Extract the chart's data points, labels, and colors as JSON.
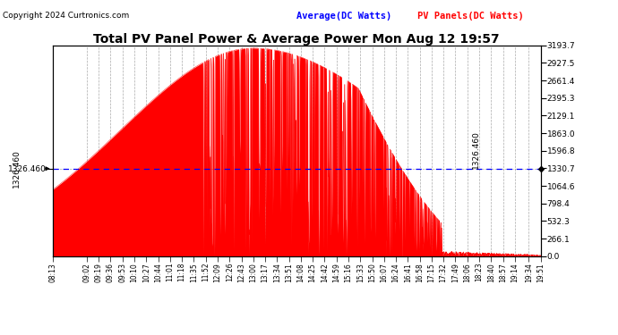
{
  "title": "Total PV Panel Power & Average Power Mon Aug 12 19:57",
  "copyright": "Copyright 2024 Curtronics.com",
  "legend_avg": "Average(DC Watts)",
  "legend_pv": "PV Panels(DC Watts)",
  "avg_value": 1326.46,
  "avg_label": "1326.460",
  "y_max": 3193.7,
  "y_min": 0.0,
  "yticks_right": [
    0.0,
    266.1,
    532.3,
    798.4,
    1064.6,
    1330.7,
    1596.8,
    1863.0,
    2129.1,
    2395.3,
    2661.4,
    2927.5,
    3193.7
  ],
  "xtick_labels": [
    "08:13",
    "09:02",
    "09:19",
    "09:36",
    "09:53",
    "10:10",
    "10:27",
    "10:44",
    "11:01",
    "11:18",
    "11:35",
    "11:52",
    "12:09",
    "12:26",
    "12:43",
    "13:00",
    "13:17",
    "13:34",
    "13:51",
    "14:08",
    "14:25",
    "14:42",
    "14:59",
    "15:16",
    "15:33",
    "15:50",
    "16:07",
    "16:24",
    "16:41",
    "16:58",
    "17:15",
    "17:32",
    "17:49",
    "18:06",
    "18:23",
    "18:40",
    "18:57",
    "19:14",
    "19:34",
    "19:51"
  ],
  "bg_color": "#ffffff",
  "fill_color": "#ff0000",
  "avg_line_color": "#0000ff",
  "grid_color": "#888888",
  "title_fontsize": 10,
  "tick_fontsize": 6.5
}
